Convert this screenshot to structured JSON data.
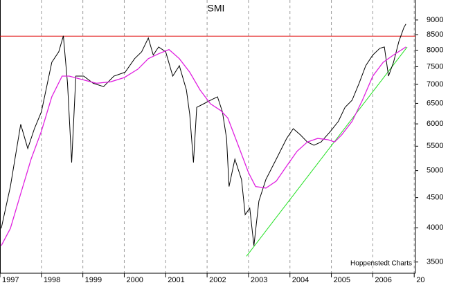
{
  "chart_data": {
    "type": "line",
    "title": "SMI",
    "source": "Hoppenstedt Charts",
    "x": [
      1997.03,
      1997.25,
      1997.5,
      1997.67,
      1997.83,
      1998.0,
      1998.25,
      1998.42,
      1998.53,
      1998.63,
      1998.73,
      1998.83,
      1999.02,
      1999.25,
      1999.5,
      1999.75,
      2000.02,
      2000.25,
      2000.42,
      2000.58,
      2000.7,
      2000.83,
      2001.0,
      2001.17,
      2001.33,
      2001.5,
      2001.58,
      2001.67,
      2001.75,
      2001.92,
      2002.08,
      2002.25,
      2002.37,
      2002.47,
      2002.53,
      2002.67,
      2002.83,
      2002.92,
      2003.03,
      2003.13,
      2003.25,
      2003.42,
      2003.67,
      2003.92,
      2004.08,
      2004.25,
      2004.42,
      2004.58,
      2004.75,
      2004.98,
      2005.17,
      2005.33,
      2005.5,
      2005.67,
      2005.83,
      2006.0,
      2006.17,
      2006.28,
      2006.38,
      2006.5,
      2006.63,
      2006.75,
      2006.8
    ],
    "series": [
      {
        "color": "#000000",
        "width": 1,
        "values": [
          3990,
          4700,
          5990,
          5450,
          5890,
          6290,
          7630,
          7950,
          8460,
          7030,
          5160,
          7230,
          7230,
          7030,
          6940,
          7230,
          7340,
          7740,
          7950,
          8390,
          7850,
          8100,
          7950,
          7230,
          7530,
          6850,
          6230,
          5160,
          6400,
          6490,
          6580,
          6670,
          6290,
          5670,
          4700,
          5230,
          4830,
          4210,
          4320,
          3730,
          4440,
          4830,
          5230,
          5670,
          5890,
          5750,
          5590,
          5520,
          5590,
          5830,
          6060,
          6400,
          6580,
          7030,
          7530,
          7850,
          8060,
          8100,
          7230,
          7630,
          8280,
          8740,
          8860
        ]
      },
      {
        "color": "#e020e0",
        "width": 1.3,
        "x": [
          1997.03,
          1997.25,
          1997.5,
          1997.75,
          1998.0,
          1998.25,
          1998.5,
          1998.67,
          1999.0,
          1999.33,
          1999.67,
          2000.0,
          2000.33,
          2000.58,
          2000.83,
          2001.08,
          2001.33,
          2001.58,
          2001.83,
          2002.08,
          2002.33,
          2002.5,
          2002.75,
          2003.0,
          2003.17,
          2003.42,
          2003.67,
          2003.92,
          2004.17,
          2004.42,
          2004.67,
          2004.92,
          2005.08,
          2005.25,
          2005.5,
          2005.75,
          2006.0,
          2006.25,
          2006.5,
          2006.8
        ],
        "values": [
          3730,
          3990,
          4570,
          5230,
          5830,
          6670,
          7230,
          7230,
          7130,
          7030,
          7070,
          7190,
          7430,
          7740,
          7890,
          8020,
          7740,
          7340,
          6850,
          6490,
          6320,
          6140,
          5520,
          4960,
          4700,
          4670,
          4800,
          5090,
          5390,
          5590,
          5670,
          5640,
          5590,
          5750,
          6060,
          6580,
          7230,
          7630,
          7850,
          8100
        ]
      }
    ],
    "hline": {
      "value": 8450,
      "color": "#e00000"
    },
    "trendline": {
      "x": [
        2002.95,
        2006.83
      ],
      "values": [
        3580,
        8100
      ],
      "color": "#20e020"
    },
    "xlim": [
      1997,
      2007.03
    ],
    "xticks": [
      1997,
      1998,
      1999,
      2000,
      2001,
      2002,
      2003,
      2004,
      2005,
      2006,
      {
        "value": 2007,
        "label": "20"
      }
    ],
    "ylim": [
      3350,
      9730
    ],
    "yticks": [
      3500,
      4000,
      4500,
      5000,
      5500,
      6000,
      6500,
      7000,
      7500,
      8000,
      8500,
      9000
    ],
    "log_scale": true,
    "grid": true
  }
}
